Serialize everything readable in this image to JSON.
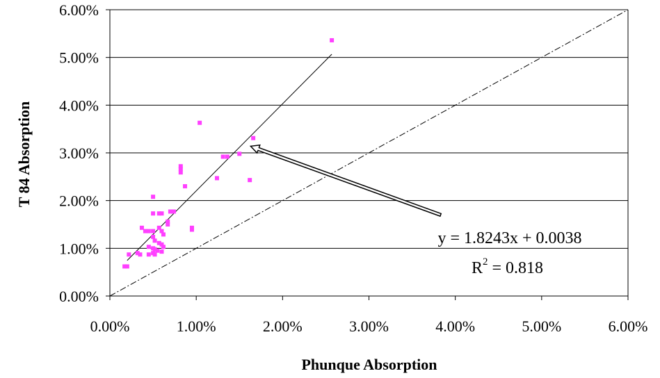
{
  "chart_data": {
    "type": "scatter",
    "title": "",
    "xlabel": "Phunque Absorption",
    "ylabel": "T 84 Absorption",
    "xlim": [
      0,
      0.06
    ],
    "ylim": [
      0,
      0.06
    ],
    "x_ticks": [
      "0.00%",
      "1.00%",
      "2.00%",
      "3.00%",
      "4.00%",
      "5.00%",
      "6.00%"
    ],
    "y_ticks": [
      "0.00%",
      "1.00%",
      "2.00%",
      "3.00%",
      "4.00%",
      "5.00%",
      "6.00%"
    ],
    "grid": "horizontal",
    "marker_color": "#ff40ff",
    "points": [
      [
        0.0257,
        0.0536
      ],
      [
        0.0104,
        0.0363
      ],
      [
        0.0166,
        0.0331
      ],
      [
        0.015,
        0.0298
      ],
      [
        0.0136,
        0.0292
      ],
      [
        0.0131,
        0.0292
      ],
      [
        0.0124,
        0.0247
      ],
      [
        0.0162,
        0.0243
      ],
      [
        0.0082,
        0.0272
      ],
      [
        0.0082,
        0.0266
      ],
      [
        0.0082,
        0.0259
      ],
      [
        0.0087,
        0.023
      ],
      [
        0.005,
        0.0208
      ],
      [
        0.005,
        0.0173
      ],
      [
        0.0057,
        0.0173
      ],
      [
        0.006,
        0.0173
      ],
      [
        0.007,
        0.0177
      ],
      [
        0.0074,
        0.0177
      ],
      [
        0.0067,
        0.0156
      ],
      [
        0.0067,
        0.015
      ],
      [
        0.0095,
        0.0143
      ],
      [
        0.0095,
        0.0139
      ],
      [
        0.0037,
        0.0143
      ],
      [
        0.0041,
        0.0136
      ],
      [
        0.0045,
        0.0136
      ],
      [
        0.005,
        0.0136
      ],
      [
        0.0057,
        0.0143
      ],
      [
        0.006,
        0.0136
      ],
      [
        0.0062,
        0.0129
      ],
      [
        0.005,
        0.0124
      ],
      [
        0.0052,
        0.0116
      ],
      [
        0.0057,
        0.0111
      ],
      [
        0.006,
        0.0108
      ],
      [
        0.0062,
        0.0103
      ],
      [
        0.0045,
        0.0103
      ],
      [
        0.005,
        0.01
      ],
      [
        0.0052,
        0.0098
      ],
      [
        0.0055,
        0.0095
      ],
      [
        0.006,
        0.0093
      ],
      [
        0.005,
        0.009
      ],
      [
        0.0045,
        0.0087
      ],
      [
        0.0052,
        0.0087
      ],
      [
        0.0032,
        0.009
      ],
      [
        0.0035,
        0.0087
      ],
      [
        0.0022,
        0.0087
      ],
      [
        0.0017,
        0.0062
      ],
      [
        0.002,
        0.0062
      ]
    ],
    "trendline": {
      "slope": 1.8243,
      "intercept": 0.0038,
      "x_range": [
        0.002,
        0.0257
      ],
      "equation": "y = 1.8243x + 0.0038",
      "r2_prefix": "R",
      "r2_sup": "2",
      "r2_value": " = 0.818"
    },
    "reference_line": {
      "from": [
        0,
        0
      ],
      "to": [
        0.06,
        0.06
      ],
      "style": "dash-dot"
    },
    "annotation_arrow": {
      "from": [
        0.0383,
        0.017
      ],
      "to": [
        0.0163,
        0.0314
      ]
    }
  }
}
